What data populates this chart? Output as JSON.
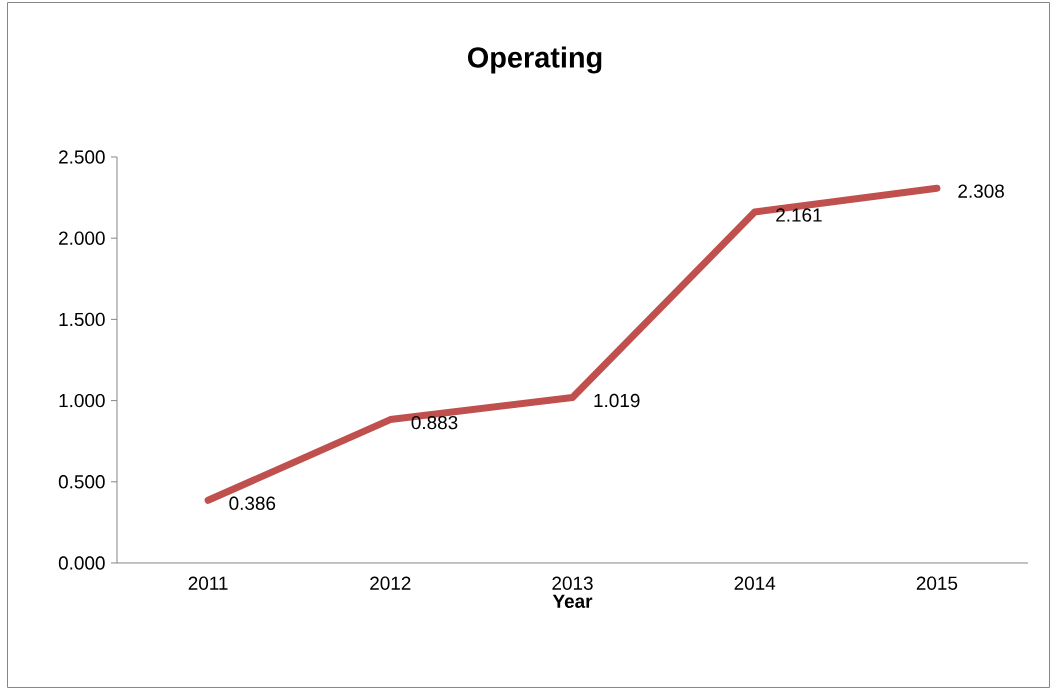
{
  "chart_data": {
    "type": "line",
    "title": "Operating",
    "xlabel": "Year",
    "categories": [
      "2011",
      "2012",
      "2013",
      "2014",
      "2015"
    ],
    "values": [
      0.386,
      0.883,
      1.019,
      2.161,
      2.308
    ],
    "color": "#c0504d",
    "ylim": [
      0,
      2.5
    ],
    "yticks": [
      {
        "value": 0,
        "label": "0.000"
      },
      {
        "value": 0.5,
        "label": "0.500"
      },
      {
        "value": 1,
        "label": "1.000"
      },
      {
        "value": 1.5,
        "label": "1.500"
      },
      {
        "value": 2,
        "label": "2.000"
      },
      {
        "value": 2.5,
        "label": "2.500"
      }
    ],
    "data_labels": true,
    "marker": "none",
    "line_style": "solid"
  }
}
